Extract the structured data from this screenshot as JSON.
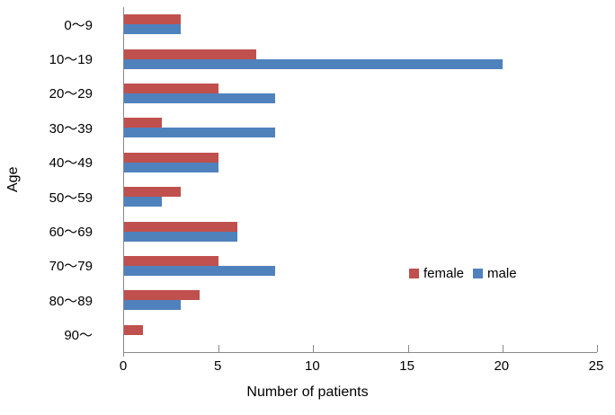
{
  "chart_data": {
    "type": "bar",
    "orientation": "horizontal",
    "title": "",
    "xlabel": "Number of patients",
    "ylabel": "Age",
    "categories": [
      "0～9",
      "10～19",
      "20～29",
      "30～39",
      "40～49",
      "50～59",
      "60～69",
      "70～79",
      "80～89",
      "90～"
    ],
    "series": [
      {
        "name": "female",
        "color": "#C0504D",
        "values": [
          3,
          7,
          5,
          2,
          5,
          3,
          6,
          5,
          4,
          1
        ]
      },
      {
        "name": "male",
        "color": "#4F81BD",
        "values": [
          3,
          20,
          8,
          8,
          5,
          2,
          6,
          8,
          3,
          0
        ]
      }
    ],
    "xlim": [
      0,
      25
    ],
    "xticks": [
      0,
      5,
      10,
      15,
      20,
      25
    ],
    "grid": false,
    "legend_position": "middle-right",
    "legend_labels": [
      "female",
      "male"
    ],
    "axis_color": "#898989",
    "background": "#FFFFFF"
  }
}
